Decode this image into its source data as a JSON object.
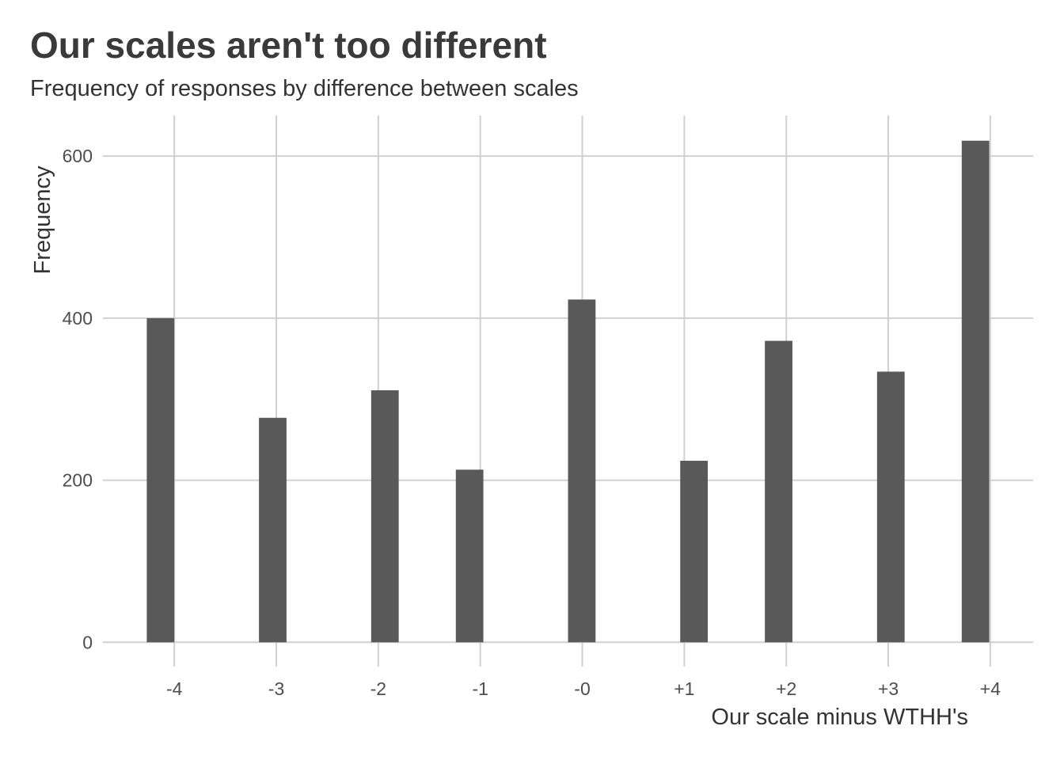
{
  "chart_data": {
    "type": "bar",
    "title": "Our scales aren't too different",
    "subtitle": "Frequency of responses by difference between scales",
    "xlabel": "Our scale minus WTHH's",
    "ylabel": "Frequency",
    "x_axis": {
      "type": "continuous",
      "range": [
        -4.7,
        4.42
      ],
      "tick_values": [
        -4,
        -3,
        -2,
        -1,
        0,
        1,
        2,
        3,
        4
      ],
      "tick_labels": [
        "-4",
        "-3",
        "-2",
        "-1",
        "-0",
        "+1",
        "+2",
        "+3",
        "+4"
      ]
    },
    "y_axis": {
      "range": [
        -30,
        650
      ],
      "tick_values": [
        0,
        200,
        400,
        600
      ],
      "tick_labels": [
        "0",
        "200",
        "400",
        "600"
      ]
    },
    "bars": [
      {
        "x_start": -4.27,
        "x_end": -4.0,
        "value": 400
      },
      {
        "x_start": -3.17,
        "x_end": -2.9,
        "value": 277
      },
      {
        "x_start": -2.07,
        "x_end": -1.8,
        "value": 311
      },
      {
        "x_start": -1.24,
        "x_end": -0.97,
        "value": 213
      },
      {
        "x_start": -0.14,
        "x_end": 0.13,
        "value": 423
      },
      {
        "x_start": 0.96,
        "x_end": 1.23,
        "value": 224
      },
      {
        "x_start": 1.79,
        "x_end": 2.06,
        "value": 372
      },
      {
        "x_start": 2.89,
        "x_end": 3.16,
        "value": 334
      },
      {
        "x_start": 3.72,
        "x_end": 3.99,
        "value": 619
      }
    ],
    "grid": true,
    "legend": "none",
    "bar_color": "#595959",
    "grid_color": "#d0d0d0"
  }
}
